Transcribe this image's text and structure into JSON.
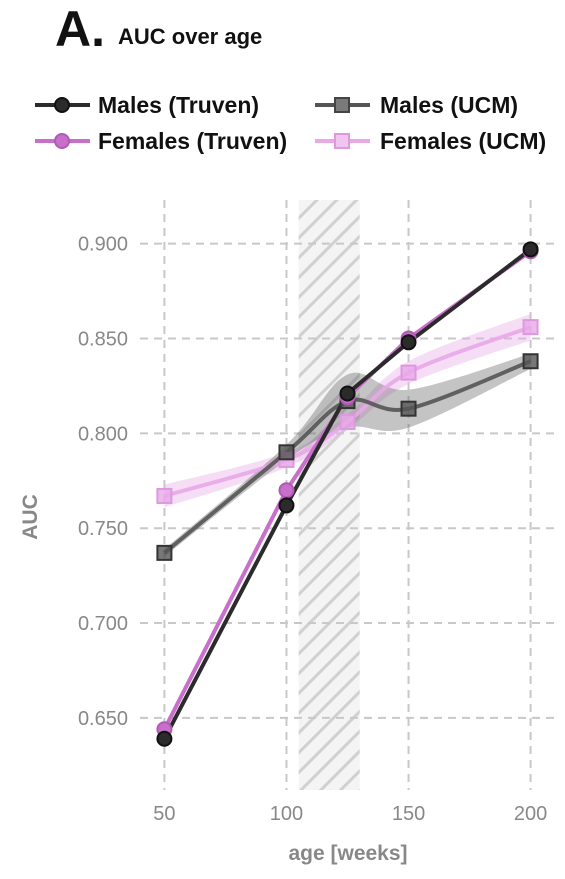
{
  "header": {
    "panel_letter": "A.",
    "title": "AUC over age"
  },
  "colors": {
    "males_truven": "#2b2b2b",
    "females_truven": "#c86ecb",
    "males_ucm": "#555555",
    "females_ucm": "#e8a9e8"
  },
  "chart_data": {
    "type": "line",
    "title": "AUC over age",
    "xlabel": "age [weeks]",
    "ylabel": "AUC",
    "x": [
      50,
      100,
      125,
      150,
      200
    ],
    "xlim": [
      40,
      210
    ],
    "ylim": [
      0.612,
      0.923
    ],
    "x_ticks": [
      "50",
      "100",
      "150",
      "200"
    ],
    "y_ticks": [
      "0.650",
      "0.700",
      "0.750",
      "0.800",
      "0.850",
      "0.900"
    ],
    "grid": true,
    "legend_position": "top",
    "highlight_band": {
      "x_from": 105,
      "x_to": 130,
      "style": "hatched"
    },
    "series": [
      {
        "name": "Males (Truven)",
        "marker": "circle",
        "color": "#2b2b2b",
        "values": [
          0.639,
          0.762,
          0.821,
          0.848,
          0.897
        ]
      },
      {
        "name": "Females (Truven)",
        "marker": "circle",
        "color": "#c86ecb",
        "values": [
          0.644,
          0.77,
          0.819,
          0.85,
          0.896
        ]
      },
      {
        "name": "Males (UCM)",
        "marker": "square",
        "color": "#555555",
        "values": [
          0.737,
          0.79,
          0.817,
          0.813,
          0.838
        ],
        "ci_lower": [
          0.735,
          0.786,
          0.803,
          0.803,
          0.834
        ],
        "ci_upper": [
          0.739,
          0.794,
          0.831,
          0.823,
          0.842
        ]
      },
      {
        "name": "Females (UCM)",
        "marker": "square",
        "color": "#e8a9e8",
        "values": [
          0.767,
          0.786,
          0.806,
          0.832,
          0.856
        ],
        "ci_lower": [
          0.761,
          0.782,
          0.802,
          0.826,
          0.849
        ],
        "ci_upper": [
          0.773,
          0.79,
          0.81,
          0.838,
          0.863
        ]
      }
    ]
  }
}
